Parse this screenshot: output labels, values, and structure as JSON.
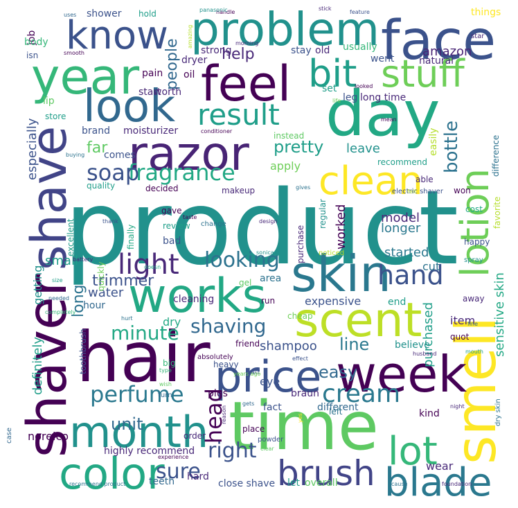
{
  "colors": {
    "background": "#ffffff",
    "dark_purple": "#440154",
    "indigo": "#3b528b",
    "teal": "#21918c",
    "green": "#5ec962",
    "yellow": "#fde725"
  },
  "words": [
    "product",
    "hair",
    "time",
    "smell",
    "shaver",
    "shave",
    "skin",
    "day",
    "scent",
    "week",
    "price",
    "works",
    "razor",
    "face",
    "problem",
    "year",
    "feel",
    "look",
    "month",
    "color",
    "know",
    "lotion",
    "clean",
    "stuff",
    "bit",
    "lot",
    "blade",
    "brush",
    "result",
    "fragrance",
    "light",
    "perfume",
    "cream",
    "head",
    "hand",
    "soap",
    "looking",
    "shaving",
    "minute",
    "sure",
    "right",
    "unit",
    "pretty",
    "bottle",
    "people",
    "help",
    "line",
    "easy",
    "amazon",
    "far",
    "leave",
    "apply",
    "model",
    "longer",
    "expensive",
    "trimmer",
    "long",
    "water",
    "dry",
    "cut",
    "item",
    "shampoo",
    "sensitive skin",
    "purchased",
    "worked",
    "started",
    "especially",
    "small",
    "definitely",
    "getting",
    "norelco",
    "highly recommend",
    "close shave",
    "let",
    "overall",
    "teeth",
    "wear",
    "kind",
    "different",
    "fact",
    "braun",
    "eye",
    "plus",
    "order",
    "case",
    "job",
    "body",
    "shower",
    "hold",
    "lip",
    "store",
    "brand",
    "moisturizer",
    "comes",
    "quality",
    "decided",
    "makeup",
    "gave",
    "review",
    "bad",
    "finally",
    "excellent",
    "quickly",
    "hour",
    "cleaning",
    "area",
    "gel",
    "cheap",
    "end",
    "believe",
    "friend",
    "big",
    "absolutely",
    "toothbrush",
    "heavy",
    "run",
    "purchase",
    "regular",
    "instead",
    "recommend",
    "easily",
    "difference",
    "able",
    "won",
    "favorite",
    "happy",
    "cost",
    "away",
    "spray",
    "quot",
    "dry skin",
    "place",
    "powder",
    "left",
    "night",
    "fine",
    "mouth",
    "husband",
    "effect",
    "wish",
    "type",
    "turn",
    "fast",
    "years ago",
    "gets",
    "reason",
    "experience",
    "recommend product",
    "clear",
    "yes",
    "cause",
    "foundation",
    "hard",
    "set",
    "leg",
    "long time",
    "looked",
    "went",
    "natural",
    "usually",
    "old",
    "stay",
    "strong",
    "dryer",
    "oil",
    "pain",
    "worth",
    "start",
    "things",
    "star",
    "feature",
    "stick",
    "handle",
    "panasonic",
    "uses",
    "isn",
    "smooth",
    "amazing",
    "morning",
    "life",
    "mean",
    "conditioner",
    "buying",
    "thank",
    "taste",
    "design",
    "change",
    "electric shaver",
    "felt",
    "gives",
    "battery",
    "sonicare",
    "noticed",
    "size",
    "needed",
    "completely",
    "hurt",
    "doesn"
  ]
}
